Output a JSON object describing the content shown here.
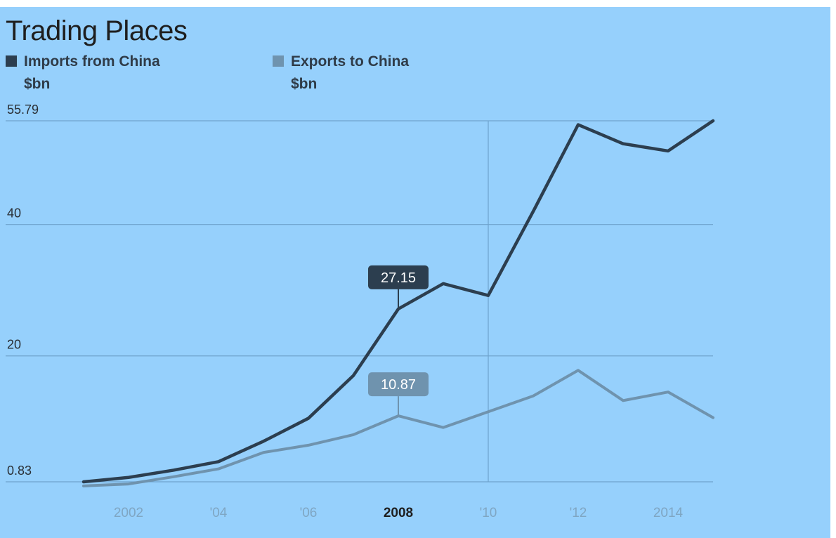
{
  "chart_data": {
    "type": "line",
    "title": "Trading Places",
    "series": [
      {
        "name": "Imports from China",
        "unit": "$bn",
        "color": "#2c3e4f",
        "values": [
          0.83,
          1.5,
          2.6,
          3.9,
          7.0,
          10.5,
          17.0,
          27.15,
          31.0,
          29.2,
          42.0,
          55.2,
          52.3,
          51.2,
          55.79
        ]
      },
      {
        "name": "Exports to China",
        "unit": "$bn",
        "color": "#6f93ae",
        "values": [
          0.2,
          0.5,
          1.6,
          2.8,
          5.3,
          6.4,
          8.0,
          10.87,
          9.1,
          11.5,
          13.9,
          17.8,
          13.2,
          14.5,
          10.6
        ]
      }
    ],
    "x": [
      2001,
      2002,
      2003,
      2004,
      2005,
      2006,
      2007,
      2008,
      2009,
      2010,
      2011,
      2012,
      2013,
      2014,
      2015
    ],
    "x_ticks": [
      {
        "x": 2002,
        "label": "2002",
        "highlight": false
      },
      {
        "x": 2004,
        "label": "'04",
        "highlight": false
      },
      {
        "x": 2006,
        "label": "'06",
        "highlight": false
      },
      {
        "x": 2008,
        "label": "2008",
        "highlight": true
      },
      {
        "x": 2010,
        "label": "'10",
        "highlight": false
      },
      {
        "x": 2012,
        "label": "'12",
        "highlight": false
      },
      {
        "x": 2014,
        "label": "2014",
        "highlight": false
      }
    ],
    "y_ticks": [
      {
        "value": 55.79,
        "label": "55.79"
      },
      {
        "value": 40,
        "label": "40"
      },
      {
        "value": 20,
        "label": "20"
      },
      {
        "value": 0.83,
        "label": "0.83"
      }
    ],
    "ylim": [
      0.83,
      55.79
    ],
    "highlight_year": 2008,
    "highlight_labels": [
      {
        "series": 0,
        "label": "27.15"
      },
      {
        "series": 1,
        "label": "10.87"
      }
    ],
    "vertical_marker_x": 2010,
    "grid": true,
    "legend_position": "top-left"
  }
}
